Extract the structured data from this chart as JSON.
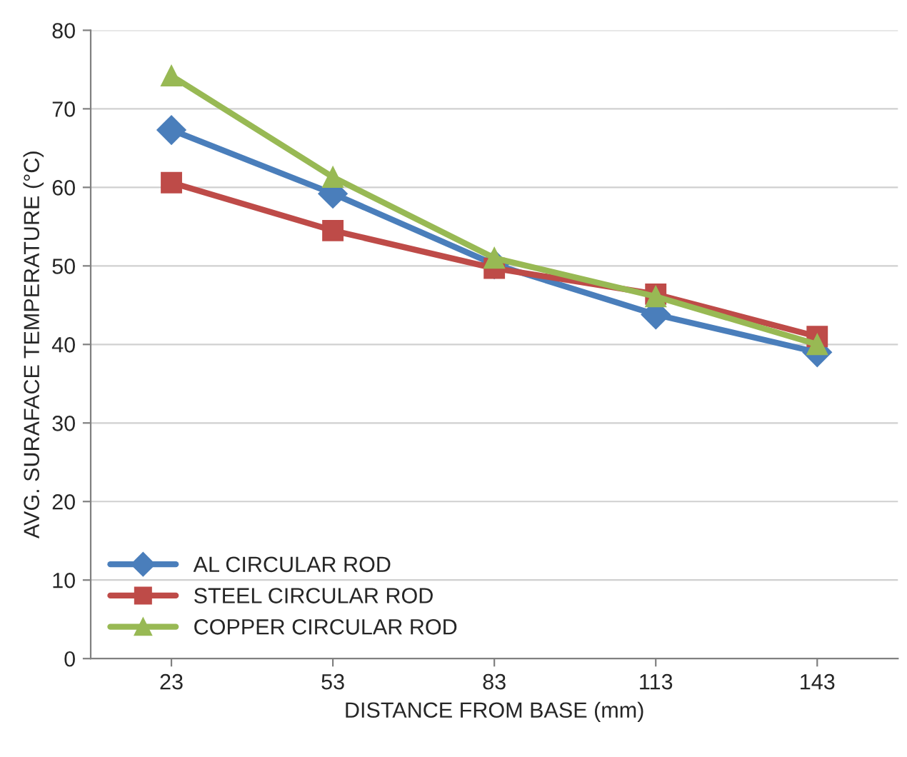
{
  "chart_data": {
    "type": "line",
    "xlabel": "DISTANCE FROM BASE (mm)",
    "ylabel": "AVG. SURAFACE TEMPERATURE (°C)",
    "categories": [
      "23",
      "53",
      "83",
      "113",
      "143"
    ],
    "series": [
      {
        "name": "AL CIRCULAR ROD",
        "color": "#4a7ebb",
        "marker": "diamond",
        "values": [
          67.3,
          59.2,
          50.2,
          43.8,
          39.0
        ]
      },
      {
        "name": "STEEL CIRCULAR ROD",
        "color": "#be4b48",
        "marker": "square",
        "values": [
          60.6,
          54.5,
          49.7,
          46.4,
          41.0
        ]
      },
      {
        "name": "COPPER CIRCULAR ROD",
        "color": "#98b954",
        "marker": "triangle",
        "values": [
          74.2,
          61.3,
          51.0,
          46.1,
          40.0
        ]
      }
    ],
    "ylim": [
      0,
      80
    ],
    "yticks": [
      0,
      10,
      20,
      30,
      40,
      50,
      60,
      70,
      80
    ],
    "grid": "y",
    "legend": "bottom left",
    "line_style": "solid"
  }
}
